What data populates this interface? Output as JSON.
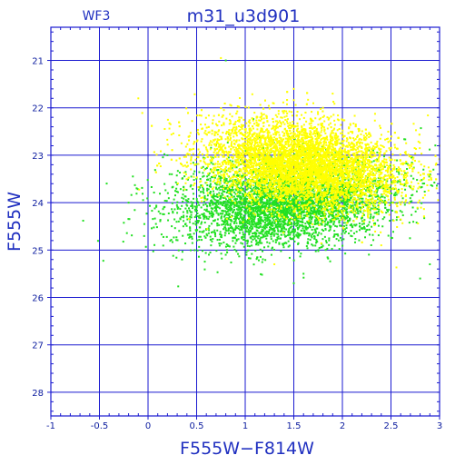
{
  "chart_data": {
    "type": "scatter",
    "title": "m31_u3d901",
    "subtitle": "WF3",
    "xlabel": "F555W−F814W",
    "ylabel": "F555W",
    "xlim": [
      -1,
      3
    ],
    "ylim": [
      28.5,
      20.3
    ],
    "y_inverted": true,
    "x_ticks": [
      "-1",
      "-0.5",
      "0",
      "0.5",
      "1",
      "1.5",
      "2",
      "2.5",
      "3"
    ],
    "y_ticks": [
      "21",
      "22",
      "23",
      "24",
      "25",
      "26",
      "27",
      "28"
    ],
    "grid": true,
    "colors": {
      "frame": "#1a1ad0",
      "text": "#2030c0",
      "series_a": "#22e022",
      "series_b": "#ffff00"
    },
    "series": [
      {
        "color": "#22e022",
        "description_of_distribution": "broad cloud",
        "center": [
          1.4,
          24.0
        ],
        "spread": [
          0.55,
          0.45
        ],
        "points": [
          [
            0.85,
            24.6
          ],
          [
            -0.2,
            24.0
          ],
          [
            0.35,
            25.2
          ],
          [
            2.9,
            25.3
          ],
          [
            1.5,
            25.7
          ],
          [
            0.2,
            23.0
          ],
          [
            0.45,
            24.2
          ],
          [
            2.8,
            25.6
          ],
          [
            0.8,
            21.0
          ],
          [
            1.6,
            25.5
          ]
        ]
      },
      {
        "color": "#ffff00",
        "description_of_distribution": "dense core",
        "center": [
          1.6,
          23.2
        ],
        "spread": [
          0.5,
          0.45
        ],
        "points": [
          [
            1.9,
            21.7
          ],
          [
            -0.1,
            21.8
          ],
          [
            0.75,
            20.95
          ],
          [
            3.0,
            22.8
          ],
          [
            2.4,
            24.9
          ],
          [
            1.3,
            25.3
          ],
          [
            1.8,
            22.0
          ],
          [
            1.5,
            21.6
          ]
        ]
      }
    ]
  }
}
